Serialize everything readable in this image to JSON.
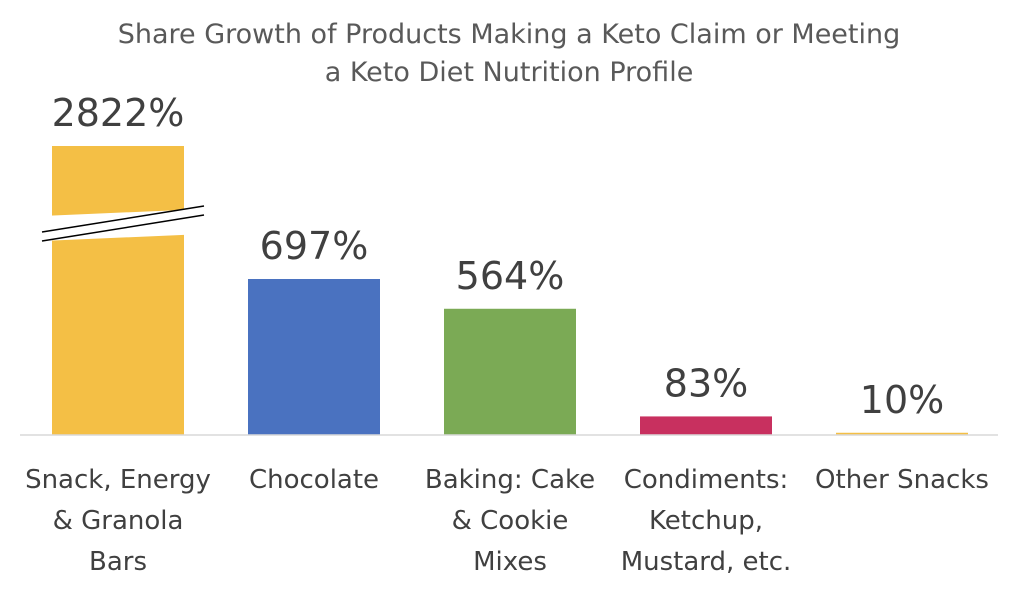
{
  "chart_data": {
    "type": "bar",
    "title": "Share Growth of Products Making a Keto Claim or Meeting a Keto Diet Nutrition Profile",
    "title_lines": [
      "Share Growth of Products Making a Keto Claim or Meeting",
      "a Keto Diet Nutrition Profile"
    ],
    "categories": [
      "Snack, Energy & Granola Bars",
      "Chocolate",
      "Baking: Cake & Cookie Mixes",
      "Condiments: Ketchup, Mustard, etc.",
      "Other Snacks"
    ],
    "category_lines": [
      [
        "Snack, Energy",
        "& Granola",
        "Bars"
      ],
      [
        "Chocolate"
      ],
      [
        "Baking: Cake",
        "& Cookie",
        "Mixes"
      ],
      [
        "Condiments:",
        "Ketchup,",
        "Mustard, etc."
      ],
      [
        "Other Snacks"
      ]
    ],
    "values": [
      2822,
      697,
      564,
      83,
      10
    ],
    "data_labels": [
      "2822%",
      "697%",
      "564%",
      "83%",
      "10%"
    ],
    "unit": "%",
    "colors": [
      "#F4BF45",
      "#4A72C0",
      "#7BAA55",
      "#C8305F",
      "#F4BF45"
    ],
    "axis_break": {
      "category_index": 0
    },
    "xlabel": "",
    "ylabel": "",
    "grid": false,
    "legend": "none"
  }
}
